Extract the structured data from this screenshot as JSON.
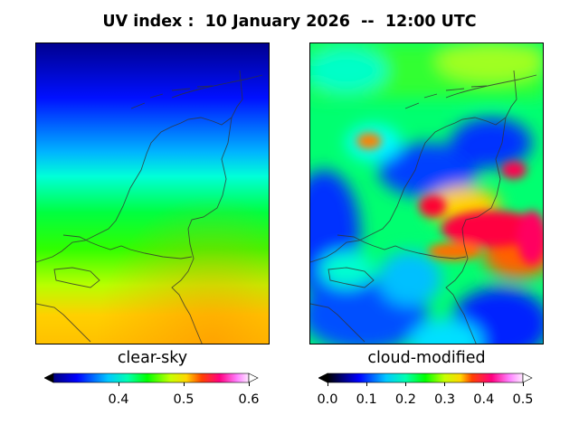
{
  "title": "UV index :  10 January 2026  --  12:00 UTC",
  "panels": {
    "left": {
      "label": "clear-sky",
      "colorbar": {
        "min": 0.3,
        "max": 0.6,
        "ticks": [
          "0.4",
          "0.5",
          "0.6"
        ],
        "tick_values": [
          0.4,
          0.5,
          0.6
        ]
      }
    },
    "right": {
      "label": "cloud-modified",
      "colorbar": {
        "min": 0.0,
        "max": 0.5,
        "ticks": [
          "0.0",
          "0.1",
          "0.2",
          "0.3",
          "0.4",
          "0.5"
        ],
        "tick_values": [
          0.0,
          0.1,
          0.2,
          0.3,
          0.4,
          0.5
        ]
      }
    }
  },
  "colors": {
    "background": "#ffffff",
    "colormap": [
      "#000000",
      "#00007f",
      "#0000ff",
      "#00c8ff",
      "#00ffb0",
      "#00ff00",
      "#c8ff00",
      "#ffd700",
      "#ff4000",
      "#ff0080",
      "#ff80ff",
      "#ffffff"
    ]
  }
}
